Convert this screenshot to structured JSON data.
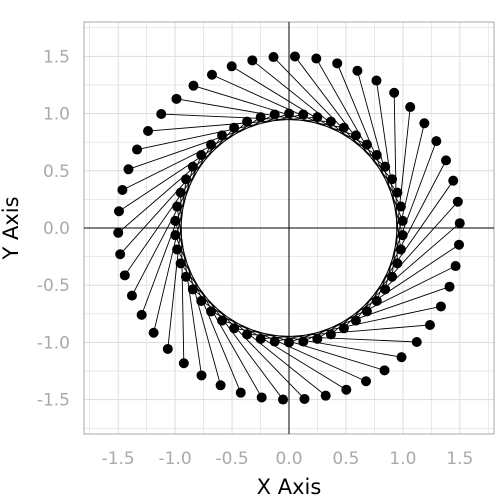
{
  "chart_data": {
    "type": "scatter",
    "title": "",
    "xlabel": "X Axis",
    "ylabel": "Y Axis",
    "xlim": [
      -1.8,
      1.8
    ],
    "ylim": [
      -1.8,
      1.8
    ],
    "x_ticks": [
      -1.5,
      -1.0,
      -0.5,
      0.0,
      0.5,
      1.0,
      1.5
    ],
    "y_ticks": [
      -1.5,
      -1.0,
      -0.5,
      0.0,
      0.5,
      1.0,
      1.5
    ],
    "x_tick_labels": [
      "-1.5",
      "-1.0",
      "-0.5",
      "0.0",
      "0.5",
      "1.0",
      "1.5"
    ],
    "y_tick_labels": [
      "-1.5",
      "-1.0",
      "-0.5",
      "0.0",
      "0.5",
      "1.0",
      "1.5"
    ],
    "grid": true,
    "zero_lines": true,
    "inner_radius": 1.0,
    "outer_radius": 1.5,
    "point_count": 50,
    "angle_offset_deg": 70,
    "colors": {
      "points": "#000000",
      "lines": "#000000",
      "grid": "#dddddd",
      "frame": "#aaaaaa",
      "zero_line": "#000000"
    },
    "series": [
      {
        "name": "",
        "ring": "inner",
        "radius": 1.0,
        "angle_start_deg": 90,
        "angle_step_deg": 7.2
      },
      {
        "name": "",
        "ring": "outer",
        "radius": 1.5,
        "angle_start_deg": 90,
        "angle_step_deg": 7.2,
        "angle_offset_deg": 70
      }
    ]
  }
}
